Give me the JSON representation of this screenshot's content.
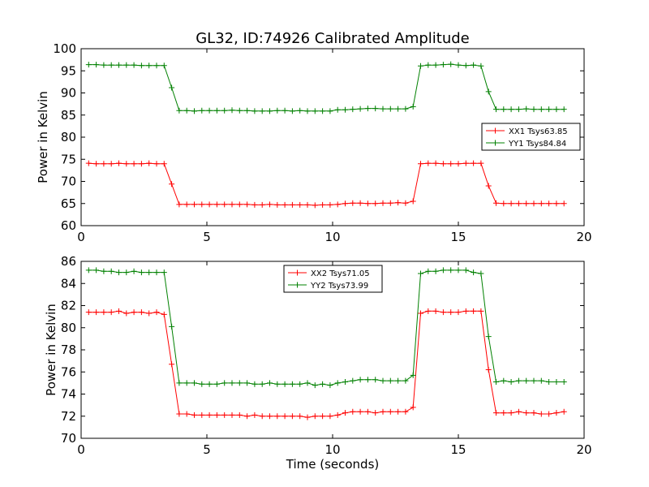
{
  "chart_data": [
    {
      "type": "line",
      "title": "GL32, ID:74926 Calibrated Amplitude",
      "xlabel": "",
      "ylabel": "Power in Kelvin",
      "xlim": [
        0,
        20
      ],
      "ylim": [
        60,
        100
      ],
      "xticks": [
        0,
        5,
        10,
        15,
        20
      ],
      "yticks": [
        60,
        65,
        70,
        75,
        80,
        85,
        90,
        95,
        100
      ],
      "grid": false,
      "legend": "center-right",
      "x": [
        0.3,
        0.6,
        0.9,
        1.2,
        1.5,
        1.8,
        2.1,
        2.4,
        2.7,
        3.0,
        3.3,
        3.6,
        3.9,
        4.2,
        4.5,
        4.8,
        5.1,
        5.4,
        5.7,
        6.0,
        6.3,
        6.6,
        6.9,
        7.2,
        7.5,
        7.8,
        8.1,
        8.4,
        8.7,
        9.0,
        9.3,
        9.6,
        9.9,
        10.2,
        10.5,
        10.8,
        11.1,
        11.4,
        11.7,
        12.0,
        12.3,
        12.6,
        12.9,
        13.2,
        13.5,
        13.8,
        14.1,
        14.4,
        14.7,
        15.0,
        15.3,
        15.6,
        15.9,
        16.2,
        16.5,
        16.8,
        17.1,
        17.4,
        17.7,
        18.0,
        18.3,
        18.6,
        18.9,
        19.2
      ],
      "series": [
        {
          "name": "XX1 Tsys63.85",
          "color": "#ff0000",
          "values": [
            74.1,
            74.0,
            74.0,
            74.0,
            74.1,
            74.0,
            74.0,
            74.0,
            74.1,
            74.0,
            74.0,
            69.4,
            64.8,
            64.8,
            64.8,
            64.8,
            64.8,
            64.8,
            64.8,
            64.8,
            64.8,
            64.8,
            64.7,
            64.7,
            64.8,
            64.7,
            64.7,
            64.7,
            64.7,
            64.7,
            64.6,
            64.7,
            64.7,
            64.8,
            65.0,
            65.1,
            65.1,
            65.0,
            65.0,
            65.1,
            65.1,
            65.2,
            65.1,
            65.5,
            74.0,
            74.1,
            74.1,
            74.0,
            74.0,
            74.0,
            74.1,
            74.1,
            74.1,
            69.0,
            65.1,
            65.0,
            65.0,
            65.0,
            65.0,
            65.0,
            65.0,
            65.0,
            65.0,
            65.0
          ]
        },
        {
          "name": "YY1 Tsys84.84",
          "color": "#008000",
          "values": [
            96.4,
            96.4,
            96.3,
            96.3,
            96.3,
            96.3,
            96.3,
            96.2,
            96.2,
            96.2,
            96.2,
            91.2,
            86.0,
            86.0,
            85.9,
            86.0,
            86.0,
            86.0,
            86.0,
            86.1,
            86.0,
            86.0,
            85.9,
            85.9,
            85.9,
            86.0,
            86.0,
            85.9,
            86.0,
            85.9,
            85.9,
            85.9,
            85.9,
            86.2,
            86.2,
            86.3,
            86.4,
            86.5,
            86.5,
            86.4,
            86.4,
            86.4,
            86.4,
            86.9,
            96.1,
            96.3,
            96.3,
            96.4,
            96.5,
            96.3,
            96.2,
            96.3,
            96.1,
            90.3,
            86.3,
            86.3,
            86.3,
            86.3,
            86.4,
            86.3,
            86.3,
            86.3,
            86.3,
            86.3
          ]
        }
      ]
    },
    {
      "type": "line",
      "title": "",
      "xlabel": "Time (seconds)",
      "ylabel": "Power in Kelvin",
      "xlim": [
        0,
        20
      ],
      "ylim": [
        70,
        86
      ],
      "xticks": [
        0,
        5,
        10,
        15,
        20
      ],
      "yticks": [
        70,
        72,
        74,
        76,
        78,
        80,
        82,
        84,
        86
      ],
      "grid": false,
      "legend": "top-center",
      "x": [
        0.3,
        0.6,
        0.9,
        1.2,
        1.5,
        1.8,
        2.1,
        2.4,
        2.7,
        3.0,
        3.3,
        3.6,
        3.9,
        4.2,
        4.5,
        4.8,
        5.1,
        5.4,
        5.7,
        6.0,
        6.3,
        6.6,
        6.9,
        7.2,
        7.5,
        7.8,
        8.1,
        8.4,
        8.7,
        9.0,
        9.3,
        9.6,
        9.9,
        10.2,
        10.5,
        10.8,
        11.1,
        11.4,
        11.7,
        12.0,
        12.3,
        12.6,
        12.9,
        13.2,
        13.5,
        13.8,
        14.1,
        14.4,
        14.7,
        15.0,
        15.3,
        15.6,
        15.9,
        16.2,
        16.5,
        16.8,
        17.1,
        17.4,
        17.7,
        18.0,
        18.3,
        18.6,
        18.9,
        19.2
      ],
      "series": [
        {
          "name": "XX2 Tsys71.05",
          "color": "#ff0000",
          "values": [
            81.4,
            81.4,
            81.4,
            81.4,
            81.5,
            81.3,
            81.4,
            81.4,
            81.3,
            81.4,
            81.2,
            76.7,
            72.2,
            72.2,
            72.1,
            72.1,
            72.1,
            72.1,
            72.1,
            72.1,
            72.1,
            72.0,
            72.1,
            72.0,
            72.0,
            72.0,
            72.0,
            72.0,
            72.0,
            71.9,
            72.0,
            72.0,
            72.0,
            72.1,
            72.3,
            72.4,
            72.4,
            72.4,
            72.3,
            72.4,
            72.4,
            72.4,
            72.4,
            72.8,
            81.3,
            81.5,
            81.5,
            81.4,
            81.4,
            81.4,
            81.5,
            81.5,
            81.5,
            76.2,
            72.3,
            72.3,
            72.3,
            72.4,
            72.3,
            72.3,
            72.2,
            72.2,
            72.3,
            72.4
          ]
        },
        {
          "name": "YY2 Tsys73.99",
          "color": "#008000",
          "values": [
            85.2,
            85.2,
            85.1,
            85.1,
            85.0,
            85.0,
            85.1,
            85.0,
            85.0,
            85.0,
            85.0,
            80.1,
            75.0,
            75.0,
            75.0,
            74.9,
            74.9,
            74.9,
            75.0,
            75.0,
            75.0,
            75.0,
            74.9,
            74.9,
            75.0,
            74.9,
            74.9,
            74.9,
            74.9,
            75.0,
            74.8,
            74.9,
            74.8,
            75.0,
            75.1,
            75.2,
            75.3,
            75.3,
            75.3,
            75.2,
            75.2,
            75.2,
            75.2,
            75.7,
            84.9,
            85.1,
            85.1,
            85.2,
            85.2,
            85.2,
            85.2,
            85.0,
            84.9,
            79.2,
            75.1,
            75.2,
            75.1,
            75.2,
            75.2,
            75.2,
            75.2,
            75.1,
            75.1,
            75.1
          ]
        }
      ]
    }
  ]
}
